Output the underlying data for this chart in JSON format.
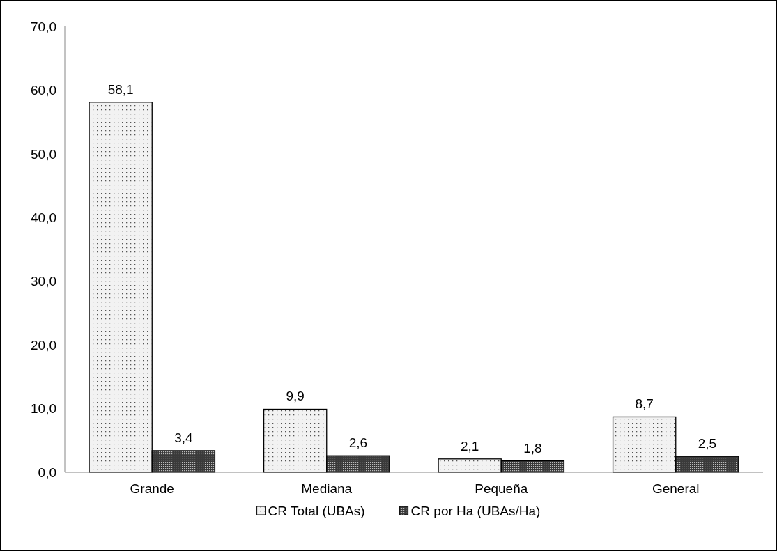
{
  "chart_data": {
    "type": "bar",
    "categories": [
      "Grande",
      "Mediana",
      "Pequeña",
      "General"
    ],
    "series": [
      {
        "name": "CR Total (UBAs)",
        "color": "#f2f2f2",
        "values": [
          58.1,
          9.9,
          2.1,
          8.7
        ],
        "value_labels": [
          "58,1",
          "9,9",
          "2,1",
          "8,7"
        ]
      },
      {
        "name": "CR por Ha (UBAs/Ha)",
        "color": "#3a3a3a",
        "values": [
          3.4,
          2.6,
          1.8,
          2.5
        ],
        "value_labels": [
          "3,4",
          "2,6",
          "1,8",
          "2,5"
        ]
      }
    ],
    "ylim": [
      0,
      70
    ],
    "yticks": [
      {
        "value": 0,
        "label": "0,0"
      },
      {
        "value": 10,
        "label": "10,0"
      },
      {
        "value": 20,
        "label": "20,0"
      },
      {
        "value": 30,
        "label": "30,0"
      },
      {
        "value": 40,
        "label": "40,0"
      },
      {
        "value": 50,
        "label": "50,0"
      },
      {
        "value": 60,
        "label": "60,0"
      },
      {
        "value": 70,
        "label": "70,0"
      }
    ],
    "grid": false,
    "legend": "bottom"
  }
}
